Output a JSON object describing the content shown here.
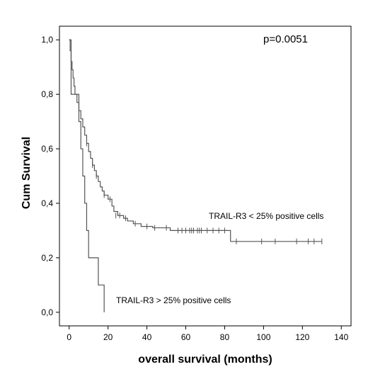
{
  "chart_data": {
    "type": "line",
    "subtype": "kaplan-meier",
    "title": "",
    "xlabel": "overall survival (months)",
    "ylabel": "Cum Survival",
    "xlim": [
      -5,
      145
    ],
    "ylim": [
      -0.05,
      1.05
    ],
    "xticks": [
      0,
      20,
      40,
      60,
      80,
      100,
      120,
      140
    ],
    "yticks": [
      0.0,
      0.2,
      0.4,
      0.6,
      0.8,
      1.0
    ],
    "yticklabels": [
      "0,0",
      "0,2",
      "0,4",
      "0,6",
      "0,8",
      "1,0"
    ],
    "grid": false,
    "legend": "none",
    "annotation": "p=0.0051",
    "series": [
      {
        "name": "TRAIL-R3 < 25% positive cells",
        "color": "#555555",
        "steps": [
          [
            0,
            1.0
          ],
          [
            0.5,
            0.96
          ],
          [
            1,
            0.92
          ],
          [
            1.5,
            0.89
          ],
          [
            2,
            0.86
          ],
          [
            2.5,
            0.83
          ],
          [
            3,
            0.8
          ],
          [
            4,
            0.77
          ],
          [
            5,
            0.74
          ],
          [
            6,
            0.71
          ],
          [
            7,
            0.68
          ],
          [
            8,
            0.65
          ],
          [
            9,
            0.62
          ],
          [
            10,
            0.59
          ],
          [
            11,
            0.565
          ],
          [
            12,
            0.54
          ],
          [
            13,
            0.52
          ],
          [
            14,
            0.5
          ],
          [
            15,
            0.48
          ],
          [
            16,
            0.46
          ],
          [
            17,
            0.445
          ],
          [
            18,
            0.43
          ],
          [
            20,
            0.415
          ],
          [
            22,
            0.39
          ],
          [
            23,
            0.37
          ],
          [
            25,
            0.355
          ],
          [
            28,
            0.345
          ],
          [
            30,
            0.335
          ],
          [
            33,
            0.325
          ],
          [
            37,
            0.315
          ],
          [
            43,
            0.31
          ],
          [
            52,
            0.3
          ],
          [
            83,
            0.26
          ],
          [
            130,
            0.26
          ]
        ],
        "censors": [
          [
            9,
            0.62
          ],
          [
            12,
            0.54
          ],
          [
            14,
            0.5
          ],
          [
            18,
            0.43
          ],
          [
            21,
            0.415
          ],
          [
            24,
            0.355
          ],
          [
            26,
            0.355
          ],
          [
            29,
            0.345
          ],
          [
            34,
            0.325
          ],
          [
            40,
            0.315
          ],
          [
            44,
            0.31
          ],
          [
            50,
            0.31
          ],
          [
            56,
            0.3
          ],
          [
            58,
            0.3
          ],
          [
            60,
            0.3
          ],
          [
            62,
            0.3
          ],
          [
            63,
            0.3
          ],
          [
            64,
            0.3
          ],
          [
            66,
            0.3
          ],
          [
            67,
            0.3
          ],
          [
            68,
            0.3
          ],
          [
            71,
            0.3
          ],
          [
            74,
            0.3
          ],
          [
            77,
            0.3
          ],
          [
            80,
            0.3
          ],
          [
            86,
            0.26
          ],
          [
            99,
            0.26
          ],
          [
            106,
            0.26
          ],
          [
            117,
            0.26
          ],
          [
            123,
            0.26
          ],
          [
            126,
            0.26
          ],
          [
            130,
            0.26
          ]
        ]
      },
      {
        "name": "TRAIL-R3 > 25% positive cells",
        "color": "#555555",
        "steps": [
          [
            0,
            1.0
          ],
          [
            1,
            0.8
          ],
          [
            5,
            0.7
          ],
          [
            6,
            0.6
          ],
          [
            7,
            0.5
          ],
          [
            8,
            0.4
          ],
          [
            9,
            0.3
          ],
          [
            10,
            0.2
          ],
          [
            15,
            0.1
          ],
          [
            18,
            0.0
          ]
        ],
        "censors": []
      }
    ]
  }
}
